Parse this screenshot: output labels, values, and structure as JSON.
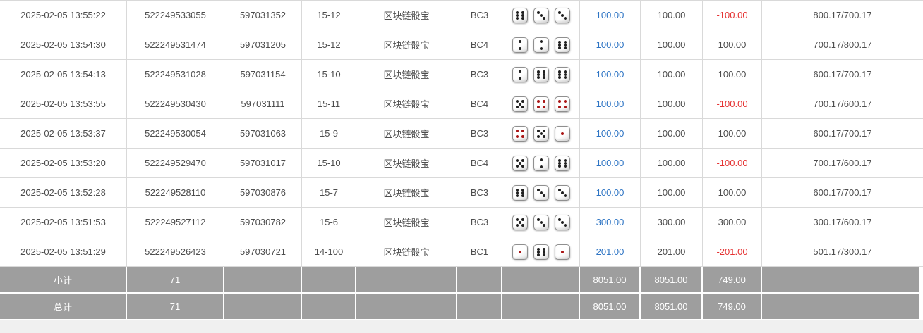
{
  "colors": {
    "link_blue": "#2d74c4",
    "negative_red": "#e53333",
    "footer_bg": "#9e9e9e",
    "footer_text": "#ffffff",
    "border_gray": "#d9d9d9",
    "text_dark": "#4d4d4d",
    "pip_black": "#1f1f1f",
    "pip_red": "#a91414"
  },
  "dice_red_pip_values": [
    1,
    4
  ],
  "table": {
    "rows": [
      {
        "time": "2025-02-05 13:55:22",
        "order_no": "522249533055",
        "round_no": "597031352",
        "period": "15-12",
        "game": "区块链骰宝",
        "bet_code": "BC3",
        "dice": [
          6,
          3,
          3
        ],
        "bet_amount": "100.00",
        "valid_amount": "100.00",
        "win_loss": "-100.00",
        "balance": "800.17/700.17"
      },
      {
        "time": "2025-02-05 13:54:30",
        "order_no": "522249531474",
        "round_no": "597031205",
        "period": "15-12",
        "game": "区块链骰宝",
        "bet_code": "BC4",
        "dice": [
          2,
          2,
          6
        ],
        "bet_amount": "100.00",
        "valid_amount": "100.00",
        "win_loss": "100.00",
        "balance": "700.17/800.17"
      },
      {
        "time": "2025-02-05 13:54:13",
        "order_no": "522249531028",
        "round_no": "597031154",
        "period": "15-10",
        "game": "区块链骰宝",
        "bet_code": "BC3",
        "dice": [
          2,
          6,
          6
        ],
        "bet_amount": "100.00",
        "valid_amount": "100.00",
        "win_loss": "100.00",
        "balance": "600.17/700.17"
      },
      {
        "time": "2025-02-05 13:53:55",
        "order_no": "522249530430",
        "round_no": "597031111",
        "period": "15-11",
        "game": "区块链骰宝",
        "bet_code": "BC4",
        "dice": [
          5,
          4,
          4
        ],
        "bet_amount": "100.00",
        "valid_amount": "100.00",
        "win_loss": "-100.00",
        "balance": "700.17/600.17"
      },
      {
        "time": "2025-02-05 13:53:37",
        "order_no": "522249530054",
        "round_no": "597031063",
        "period": "15-9",
        "game": "区块链骰宝",
        "bet_code": "BC3",
        "dice": [
          4,
          5,
          1
        ],
        "bet_amount": "100.00",
        "valid_amount": "100.00",
        "win_loss": "100.00",
        "balance": "600.17/700.17"
      },
      {
        "time": "2025-02-05 13:53:20",
        "order_no": "522249529470",
        "round_no": "597031017",
        "period": "15-10",
        "game": "区块链骰宝",
        "bet_code": "BC4",
        "dice": [
          5,
          2,
          6
        ],
        "bet_amount": "100.00",
        "valid_amount": "100.00",
        "win_loss": "-100.00",
        "balance": "700.17/600.17"
      },
      {
        "time": "2025-02-05 13:52:28",
        "order_no": "522249528110",
        "round_no": "597030876",
        "period": "15-7",
        "game": "区块链骰宝",
        "bet_code": "BC3",
        "dice": [
          6,
          3,
          3
        ],
        "bet_amount": "100.00",
        "valid_amount": "100.00",
        "win_loss": "100.00",
        "balance": "600.17/700.17"
      },
      {
        "time": "2025-02-05 13:51:53",
        "order_no": "522249527112",
        "round_no": "597030782",
        "period": "15-6",
        "game": "区块链骰宝",
        "bet_code": "BC3",
        "dice": [
          5,
          3,
          3
        ],
        "bet_amount": "300.00",
        "valid_amount": "300.00",
        "win_loss": "300.00",
        "balance": "300.17/600.17"
      },
      {
        "time": "2025-02-05 13:51:29",
        "order_no": "522249526423",
        "round_no": "597030721",
        "period": "14-100",
        "game": "区块链骰宝",
        "bet_code": "BC1",
        "dice": [
          1,
          6,
          1
        ],
        "bet_amount": "201.00",
        "valid_amount": "201.00",
        "win_loss": "-201.00",
        "balance": "501.17/300.17"
      }
    ],
    "footer": [
      {
        "label": "小计",
        "count": "71",
        "bet_amount": "8051.00",
        "valid_amount": "8051.00",
        "win_loss": "749.00"
      },
      {
        "label": "总计",
        "count": "71",
        "bet_amount": "8051.00",
        "valid_amount": "8051.00",
        "win_loss": "749.00"
      }
    ]
  }
}
